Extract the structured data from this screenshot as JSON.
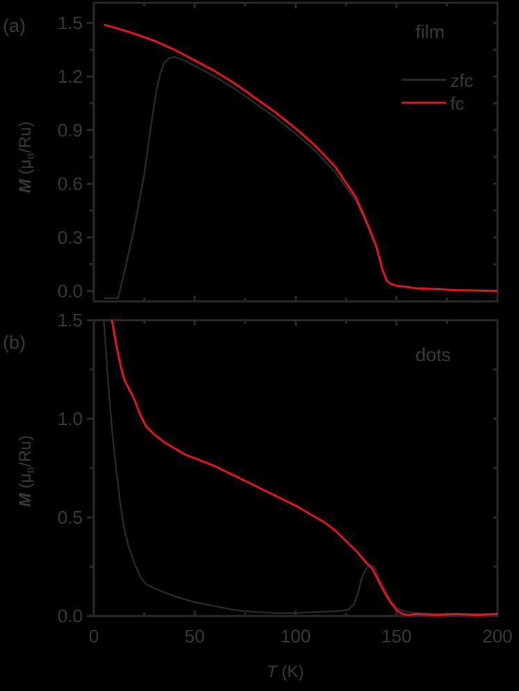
{
  "chart_data": [
    {
      "panel": "(a)",
      "type": "line",
      "annotation": "film",
      "xlabel": "T (K)",
      "ylabel": "M (μB/Ru)",
      "xlim": [
        0,
        200
      ],
      "ylim": [
        -0.05,
        1.6
      ],
      "xticks": [
        0,
        50,
        100,
        150,
        200
      ],
      "yticks": [
        0.0,
        0.3,
        0.6,
        0.9,
        1.2,
        1.5
      ],
      "ytick_labels": [
        "0.0",
        "0.3",
        "0.6",
        "0.9",
        "1.2",
        "1.5"
      ],
      "grid": false,
      "legend": {
        "position": "upper right",
        "entries": [
          "zfc",
          "fc"
        ]
      },
      "series": [
        {
          "name": "zfc",
          "color": "#2a2a2a",
          "x": [
            5,
            12,
            15,
            20,
            25,
            28,
            31,
            33,
            35,
            37,
            40,
            45,
            50,
            60,
            70,
            80,
            90,
            100,
            110,
            120,
            130,
            135,
            140,
            143,
            145,
            147,
            150,
            160,
            170,
            180,
            190,
            200
          ],
          "y": [
            -0.04,
            -0.04,
            0.1,
            0.35,
            0.65,
            0.9,
            1.12,
            1.22,
            1.28,
            1.3,
            1.31,
            1.29,
            1.26,
            1.2,
            1.13,
            1.05,
            0.97,
            0.88,
            0.78,
            0.66,
            0.5,
            0.38,
            0.24,
            0.12,
            0.06,
            0.04,
            0.03,
            0.015,
            0.01,
            0.005,
            0.003,
            0.0
          ]
        },
        {
          "name": "fc",
          "color": "#e8141e",
          "x": [
            5,
            10,
            20,
            30,
            40,
            50,
            60,
            70,
            80,
            90,
            100,
            110,
            120,
            130,
            135,
            140,
            143,
            145,
            147,
            150,
            160,
            170,
            180,
            190,
            200
          ],
          "y": [
            1.49,
            1.475,
            1.44,
            1.4,
            1.35,
            1.29,
            1.23,
            1.16,
            1.08,
            1.0,
            0.91,
            0.81,
            0.69,
            0.52,
            0.39,
            0.25,
            0.12,
            0.06,
            0.04,
            0.03,
            0.015,
            0.01,
            0.005,
            0.003,
            0.0
          ]
        }
      ]
    },
    {
      "panel": "(b)",
      "type": "line",
      "annotation": "dots",
      "xlabel": "T (K)",
      "ylabel": "M (μB/Ru)",
      "xlim": [
        0,
        200
      ],
      "ylim": [
        0.0,
        1.5
      ],
      "xticks": [
        0,
        50,
        100,
        150,
        200
      ],
      "xtick_labels": [
        "0",
        "50",
        "100",
        "150",
        "200"
      ],
      "yticks": [
        0.0,
        0.5,
        1.0,
        1.5
      ],
      "ytick_labels": [
        "0.0",
        "0.5",
        "1.0",
        "1.5"
      ],
      "grid": false,
      "series": [
        {
          "name": "zfc",
          "color": "#2a2a2a",
          "x": [
            5,
            7,
            9,
            11,
            13,
            15,
            17,
            20,
            23,
            26,
            30,
            35,
            40,
            50,
            60,
            70,
            80,
            90,
            100,
            110,
            120,
            126,
            129,
            131,
            133,
            135,
            137,
            139,
            141,
            144,
            147,
            150,
            155,
            160,
            170,
            180,
            190,
            200
          ],
          "y": [
            1.5,
            1.2,
            0.95,
            0.75,
            0.58,
            0.45,
            0.36,
            0.27,
            0.2,
            0.16,
            0.14,
            0.12,
            0.1,
            0.07,
            0.05,
            0.03,
            0.02,
            0.015,
            0.015,
            0.02,
            0.025,
            0.03,
            0.06,
            0.12,
            0.2,
            0.24,
            0.26,
            0.25,
            0.2,
            0.14,
            0.08,
            0.04,
            0.02,
            0.015,
            0.01,
            0.01,
            0.01,
            0.01
          ]
        },
        {
          "name": "fc",
          "color": "#e8141e",
          "x": [
            9,
            11,
            13,
            15,
            17,
            20,
            23,
            26,
            30,
            35,
            40,
            45,
            50,
            55,
            60,
            70,
            80,
            90,
            100,
            110,
            115,
            120,
            125,
            130,
            135,
            138,
            141,
            144,
            147,
            150,
            153,
            156,
            160,
            170,
            180,
            190,
            200
          ],
          "y": [
            1.5,
            1.38,
            1.28,
            1.2,
            1.16,
            1.1,
            1.02,
            0.96,
            0.92,
            0.88,
            0.85,
            0.82,
            0.8,
            0.78,
            0.76,
            0.71,
            0.66,
            0.61,
            0.56,
            0.5,
            0.47,
            0.43,
            0.38,
            0.33,
            0.27,
            0.24,
            0.18,
            0.12,
            0.07,
            0.03,
            0.01,
            0.005,
            0.01,
            0.005,
            0.01,
            0.005,
            0.01
          ]
        }
      ]
    }
  ],
  "labels": {
    "panel_a": "(a)",
    "panel_b": "(b)",
    "annot_a": "film",
    "annot_b": "dots",
    "legend_zfc": "zfc",
    "legend_fc": "fc",
    "ylabel_M": "M",
    "ylabel_unit_open": " (μ",
    "ylabel_unit_sub": "B",
    "ylabel_unit_close": "/Ru)",
    "xlabel_T": "T",
    "xlabel_unit": " (K)"
  },
  "ticks": {
    "a_y": [
      "1.5",
      "1.2",
      "0.9",
      "0.6",
      "0.3",
      "0.0"
    ],
    "b_y": [
      "1.5",
      "1.0",
      "0.5",
      "0.0"
    ],
    "x": [
      "0",
      "50",
      "100",
      "150",
      "200"
    ]
  },
  "colors": {
    "zfc": "#2a2a2a",
    "fc": "#e8141e",
    "axis": "#2a2a2a",
    "background": "#000000"
  }
}
